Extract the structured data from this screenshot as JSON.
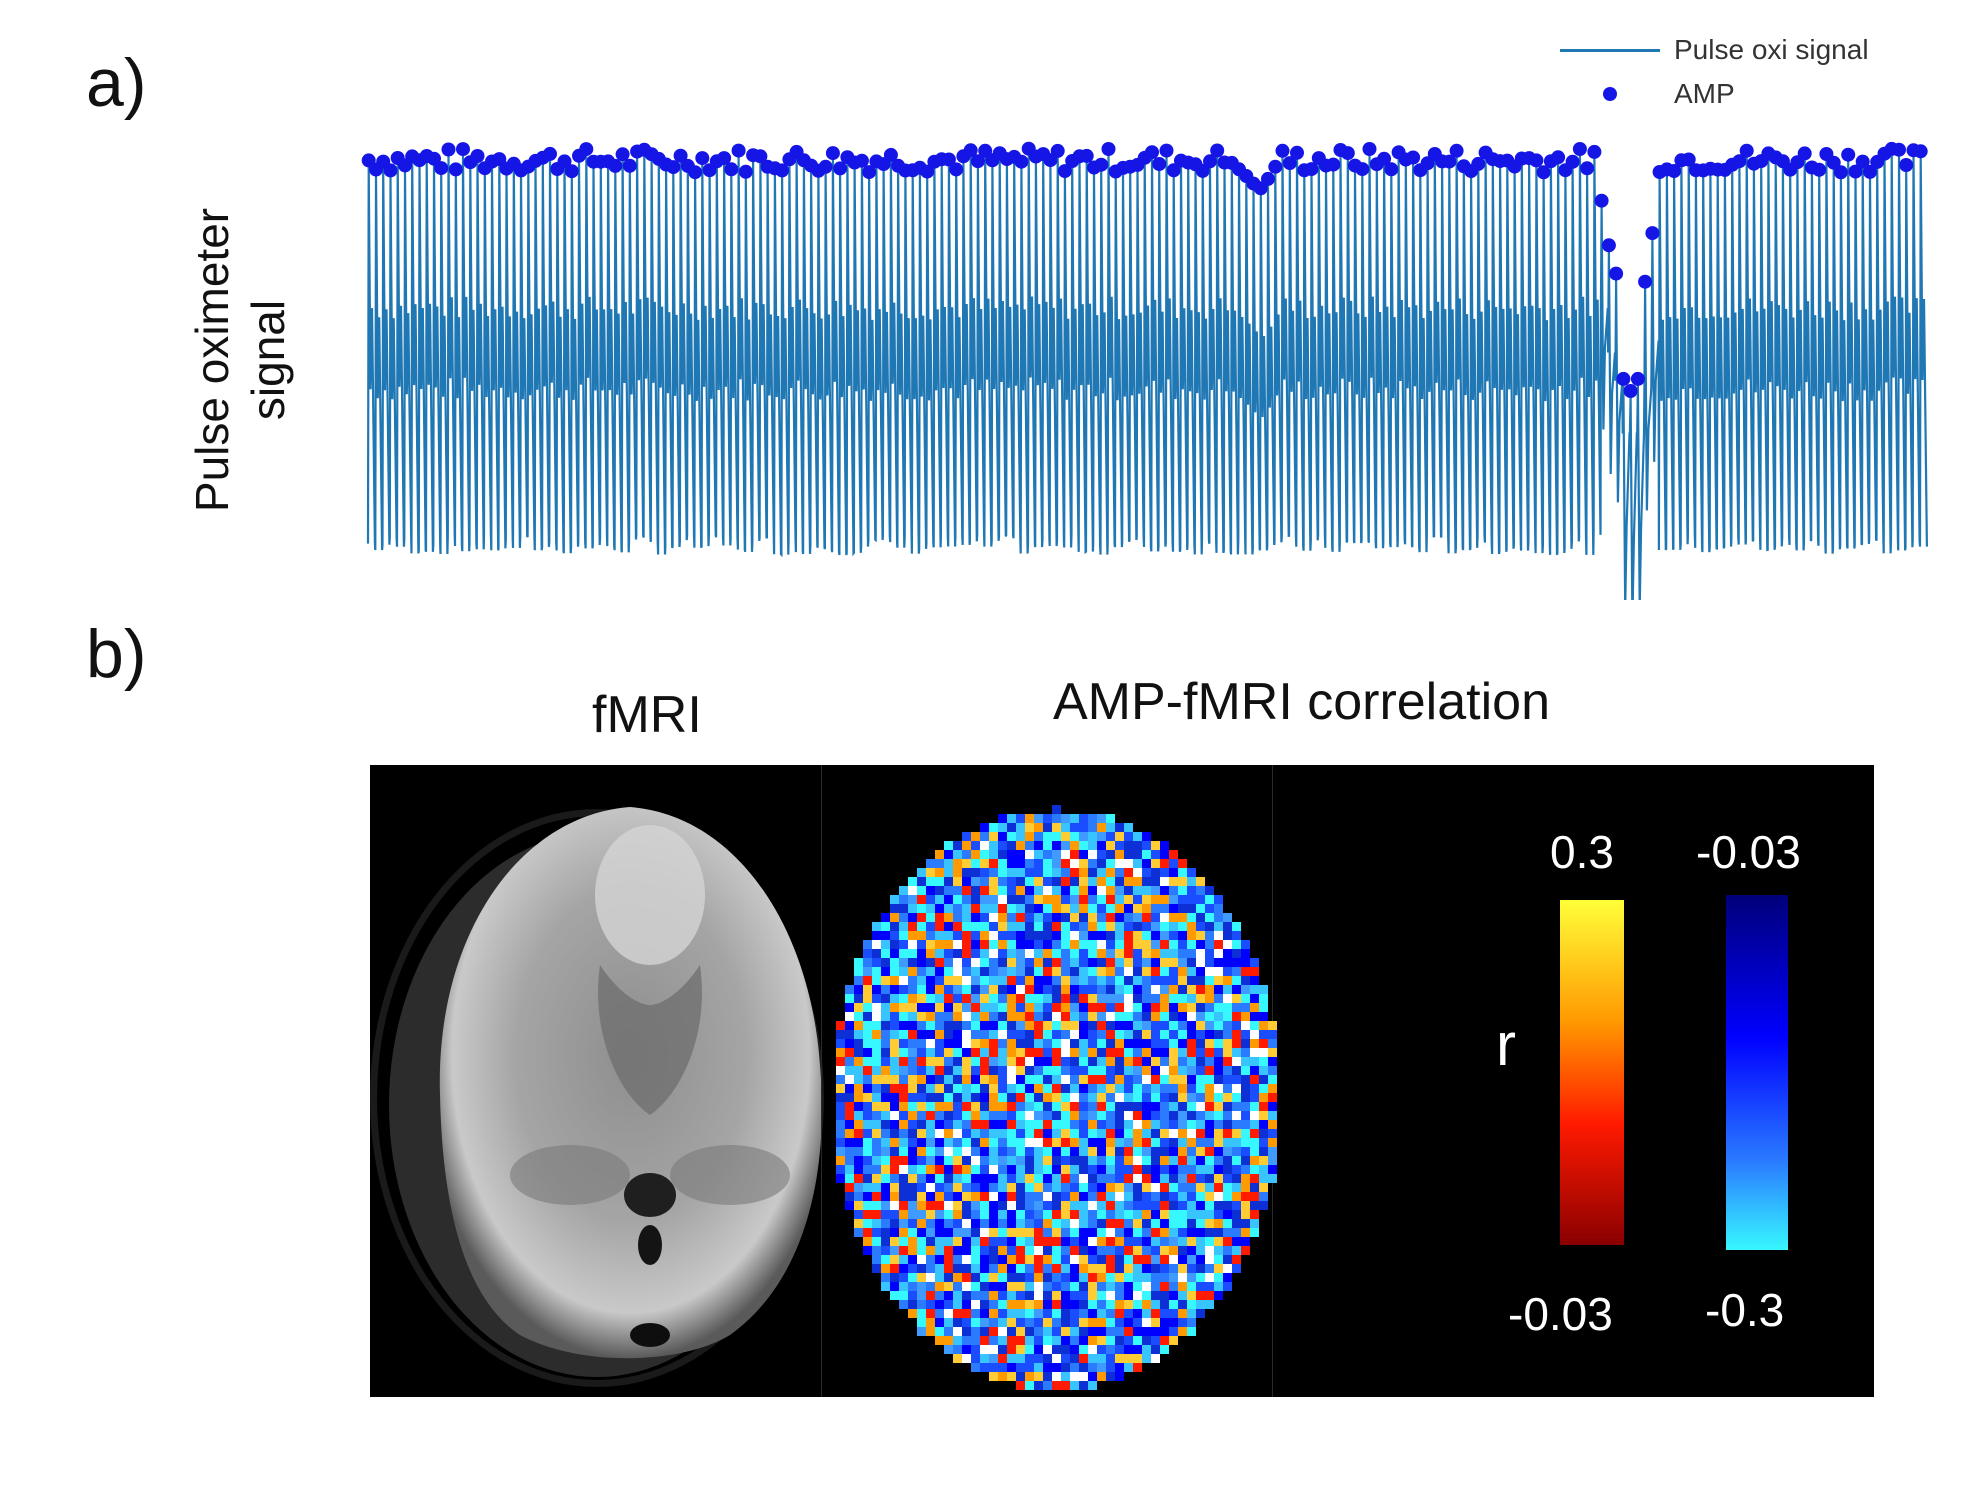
{
  "panels": {
    "a_label": "a)",
    "b_label": "b)"
  },
  "chart_data": {
    "type": "line",
    "title": "",
    "xlabel": "",
    "ylabel": "Pulse oximeter signal",
    "ylabel_lines": [
      "Pulse oximeter",
      "signal"
    ],
    "legend": [
      "Pulse oxi signal",
      "AMP"
    ],
    "legend_position": "top-right",
    "grid": false,
    "axes_visible": false,
    "n_beats": 215,
    "gap_beat_range": [
      170,
      180
    ],
    "series": [
      {
        "name": "Pulse oxi signal",
        "style": "line",
        "color": "#1f77b4",
        "description_values": {
          "typical_peak": 0.96,
          "typical_trough": 0.03
        }
      },
      {
        "name": "AMP",
        "style": "markers",
        "color": "#1515e6",
        "values_dip": [
          0.86,
          0.75,
          0.68,
          0.42,
          0.39,
          0.42,
          0.66,
          0.78
        ]
      }
    ]
  },
  "figure_b": {
    "left_title": "fMRI",
    "right_title": "AMP-fMRI correlation",
    "colorbar_variable": "r",
    "positive_colorbar": {
      "top": "0.3",
      "bottom": "-0.03",
      "colors": [
        "#ffff3a",
        "#ff9a00",
        "#ff1a00",
        "#8a0000"
      ]
    },
    "negative_colorbar": {
      "top": "-0.03",
      "bottom": "-0.3",
      "colors": [
        "#00007a",
        "#0000ff",
        "#2a7bff",
        "#37f7ff"
      ]
    }
  }
}
